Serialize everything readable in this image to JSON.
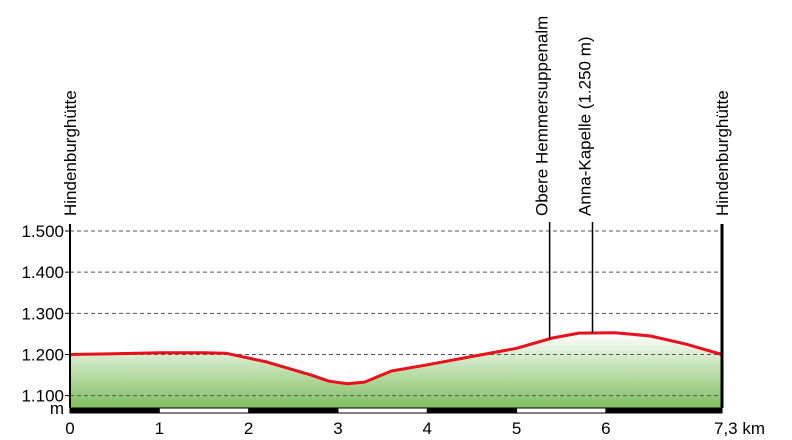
{
  "chart_data": {
    "type": "area",
    "x": [
      0,
      0.5,
      1.0,
      1.5,
      1.75,
      2.2,
      2.7,
      2.9,
      3.1,
      3.3,
      3.6,
      4.0,
      4.5,
      5.0,
      5.4,
      5.7,
      6.1,
      6.5,
      6.9,
      7.3
    ],
    "values": [
      1200,
      1202,
      1204,
      1204,
      1203,
      1182,
      1150,
      1135,
      1129,
      1133,
      1160,
      1175,
      1195,
      1215,
      1240,
      1252,
      1253,
      1245,
      1225,
      1200
    ],
    "xlim": [
      0,
      7.3
    ],
    "ylim": [
      1070,
      1500
    ],
    "xticks": [
      0,
      1,
      2,
      3,
      4,
      5,
      6,
      {
        "value": 7.3,
        "label": "7,3 km"
      }
    ],
    "yticks": [
      {
        "value": 1100,
        "label": "1.100"
      },
      {
        "value": 1200,
        "label": "1.200"
      },
      {
        "value": 1300,
        "label": "1.300"
      },
      {
        "value": 1400,
        "label": "1.400"
      },
      {
        "value": 1500,
        "label": "1.500"
      }
    ],
    "y_unit": "m",
    "grid": true,
    "line_color": "#e8101a",
    "fill_color": "#7fbf5f",
    "waypoints": [
      {
        "label": "Hindenburghütte",
        "x": 0
      },
      {
        "label": "Obere Hemmersuppenalm",
        "x": 5.37
      },
      {
        "label": "Anna-Kapelle (1.250 m)",
        "x": 5.85
      },
      {
        "label": "Hindenburghütte",
        "x": 7.3
      }
    ]
  }
}
